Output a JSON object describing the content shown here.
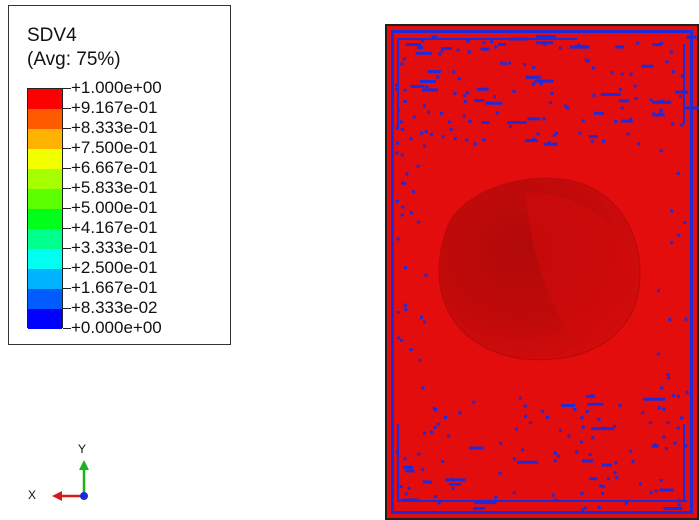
{
  "legend": {
    "title": "SDV4",
    "subtitle": "(Avg: 75%)",
    "labels": [
      "+1.000e+00",
      "+9.167e-01",
      "+8.333e-01",
      "+7.500e-01",
      "+6.667e-01",
      "+5.833e-01",
      "+5.000e-01",
      "+4.167e-01",
      "+3.333e-01",
      "+2.500e-01",
      "+1.667e-01",
      "+8.333e-02",
      "+0.000e+00"
    ],
    "colors": [
      "#ff0000",
      "#ff5a00",
      "#ffb300",
      "#f2ff00",
      "#a6ff00",
      "#5cff00",
      "#00ff1a",
      "#00ff8c",
      "#00fff0",
      "#00b3ff",
      "#005cff",
      "#0000ff"
    ]
  },
  "model": {
    "background_color": "#e30d0d",
    "element_color": "#1f2bd8"
  },
  "triad": {
    "y_label": "Y",
    "x_label": "X"
  }
}
